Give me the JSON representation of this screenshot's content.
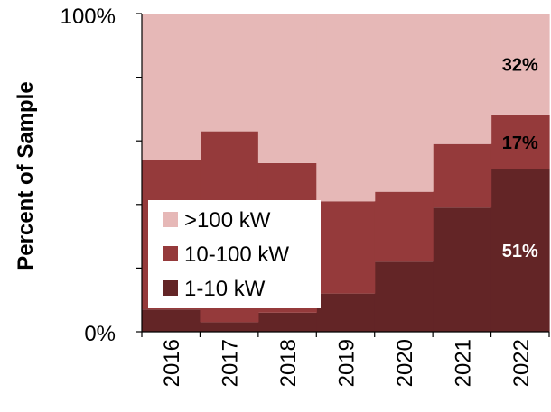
{
  "chart_data": {
    "type": "area",
    "categories": [
      "2016",
      "2017",
      "2018",
      "2019",
      "2020",
      "2021",
      "2022"
    ],
    "series": [
      {
        "name": "1-10 kW",
        "values": [
          7,
          3,
          6,
          12,
          22,
          39,
          51
        ],
        "color": "#632526"
      },
      {
        "name": "10-100 kW",
        "values": [
          47,
          60,
          47,
          29,
          22,
          20,
          17
        ],
        "color": "#953a3b"
      },
      {
        "name": ">100 kW",
        "values": [
          46,
          37,
          47,
          59,
          56,
          41,
          32
        ],
        "color": "#e6b8b7"
      }
    ],
    "ylabel": "Percent of  Sample",
    "yticks": [
      "0%",
      "100%"
    ],
    "ylim": [
      0,
      100
    ],
    "legend": {
      "position": "bottom-left"
    },
    "annotations": [
      {
        "text": "32%",
        "series": ">100 kW",
        "category": "2022",
        "color": "#000000"
      },
      {
        "text": "17%",
        "series": "10-100 kW",
        "category": "2022",
        "color": "#000000"
      },
      {
        "text": "51%",
        "series": "1-10 kW",
        "category": "2022",
        "color": "#ffffff"
      }
    ],
    "grid": false
  }
}
